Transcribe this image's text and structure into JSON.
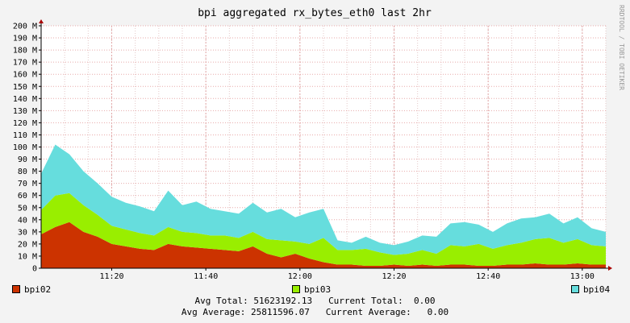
{
  "chart_data": {
    "type": "area",
    "stacked": true,
    "title": "bpi aggregated rx_bytes_eth0 last 2hr",
    "watermark": "RRDTOOL / TOBI OETIKER",
    "xlabel": "",
    "ylabel": "",
    "grid": true,
    "x_ticks": [
      "11:20",
      "11:40",
      "12:00",
      "12:20",
      "12:40",
      "13:00"
    ],
    "x_tick_minutes": [
      15,
      35,
      55,
      75,
      95,
      115
    ],
    "x_range_minutes": [
      0,
      120
    ],
    "ylim": [
      0,
      200
    ],
    "y_unit": "M",
    "y_ticks": [
      "0",
      "10 M",
      "20 M",
      "30 M",
      "40 M",
      "50 M",
      "60 M",
      "70 M",
      "80 M",
      "90 M",
      "100 M",
      "110 M",
      "120 M",
      "130 M",
      "140 M",
      "150 M",
      "160 M",
      "170 M",
      "180 M",
      "190 M",
      "200 M"
    ],
    "x_minutes": [
      0,
      3,
      6,
      9,
      12,
      15,
      18,
      21,
      24,
      27,
      30,
      33,
      36,
      39,
      42,
      45,
      48,
      51,
      54,
      57,
      60,
      63,
      66,
      69,
      72,
      75,
      78,
      81,
      84,
      87,
      90,
      93,
      96,
      99,
      102,
      105,
      108,
      111,
      114,
      117,
      120
    ],
    "series": [
      {
        "name": "bpi02",
        "color": "#cc3300",
        "values": [
          28,
          34,
          38,
          30,
          26,
          20,
          18,
          16,
          15,
          20,
          18,
          17,
          16,
          15,
          14,
          18,
          12,
          9,
          12,
          8,
          5,
          3,
          3,
          2,
          2,
          3,
          2,
          3,
          2,
          3,
          3,
          2,
          2,
          3,
          3,
          4,
          3,
          3,
          4,
          3,
          3
        ]
      },
      {
        "name": "bpi03",
        "color": "#99ee00",
        "values": [
          20,
          26,
          24,
          22,
          18,
          15,
          14,
          13,
          12,
          14,
          12,
          12,
          11,
          12,
          11,
          12,
          12,
          14,
          10,
          12,
          20,
          12,
          12,
          14,
          11,
          8,
          10,
          12,
          10,
          16,
          15,
          18,
          14,
          16,
          18,
          20,
          22,
          18,
          20,
          16,
          15
        ]
      },
      {
        "name": "bpi04",
        "color": "#66dddd",
        "values": [
          30,
          42,
          32,
          28,
          26,
          24,
          22,
          22,
          20,
          30,
          22,
          26,
          22,
          20,
          20,
          24,
          22,
          26,
          20,
          26,
          24,
          8,
          6,
          10,
          8,
          8,
          10,
          12,
          14,
          18,
          20,
          16,
          14,
          18,
          20,
          18,
          20,
          16,
          18,
          14,
          12
        ]
      }
    ],
    "legend": [
      "bpi02",
      "bpi03",
      "bpi04"
    ],
    "stats": {
      "avg_total_label": "Avg Total:",
      "avg_total_value": "51623192.13",
      "current_total_label": "Current Total:",
      "current_total_value": "0.00",
      "avg_average_label": "Avg Average:",
      "avg_average_value": "25811596.07",
      "current_average_label": "Current Average:",
      "current_average_value": "0.00"
    }
  }
}
